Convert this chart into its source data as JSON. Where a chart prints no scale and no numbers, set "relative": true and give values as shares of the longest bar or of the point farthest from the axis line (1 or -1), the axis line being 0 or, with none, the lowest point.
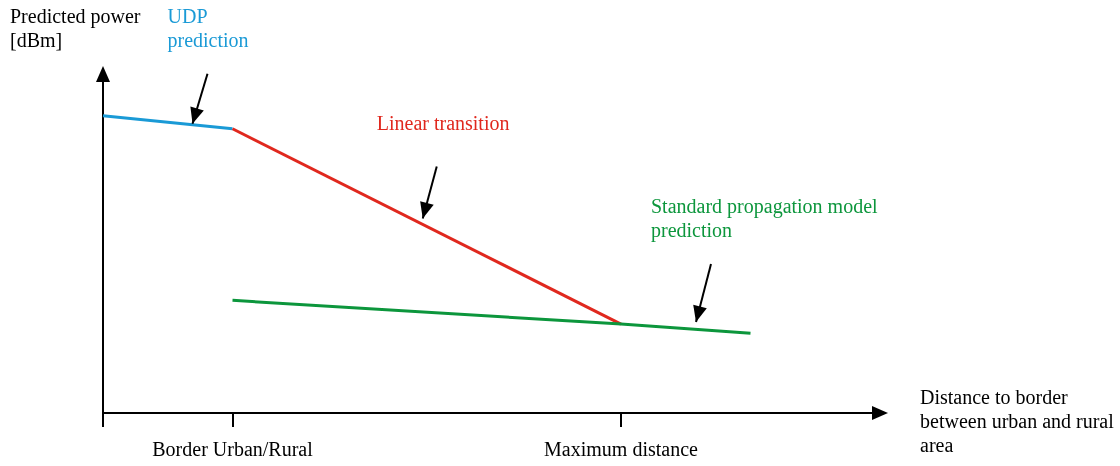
{
  "chart_data": {
    "type": "line",
    "relative": true,
    "ylabel": "Predicted power [dBm]",
    "xlabel": "Distance to border between urban and rural area",
    "categories": [
      null,
      "Border Urban/Rural",
      null,
      null,
      "Maximum distance",
      null,
      null
    ],
    "grid": false,
    "legend": false,
    "marker": "none",
    "line_style": "solid",
    "series": [
      {
        "name": "UDP prediction",
        "color": "#1a9ad6",
        "values": [
          1,
          0.956,
          null,
          null,
          null,
          null,
          null
        ]
      },
      {
        "name": "Linear transition",
        "color": "#e0281e",
        "values": [
          null,
          0.956,
          null,
          null,
          0.299,
          null,
          null
        ]
      },
      {
        "name": "Standard propagation model prediction",
        "color": "#0c963c",
        "values": [
          null,
          0.379,
          null,
          null,
          0.299,
          0.268,
          null
        ]
      }
    ]
  }
}
